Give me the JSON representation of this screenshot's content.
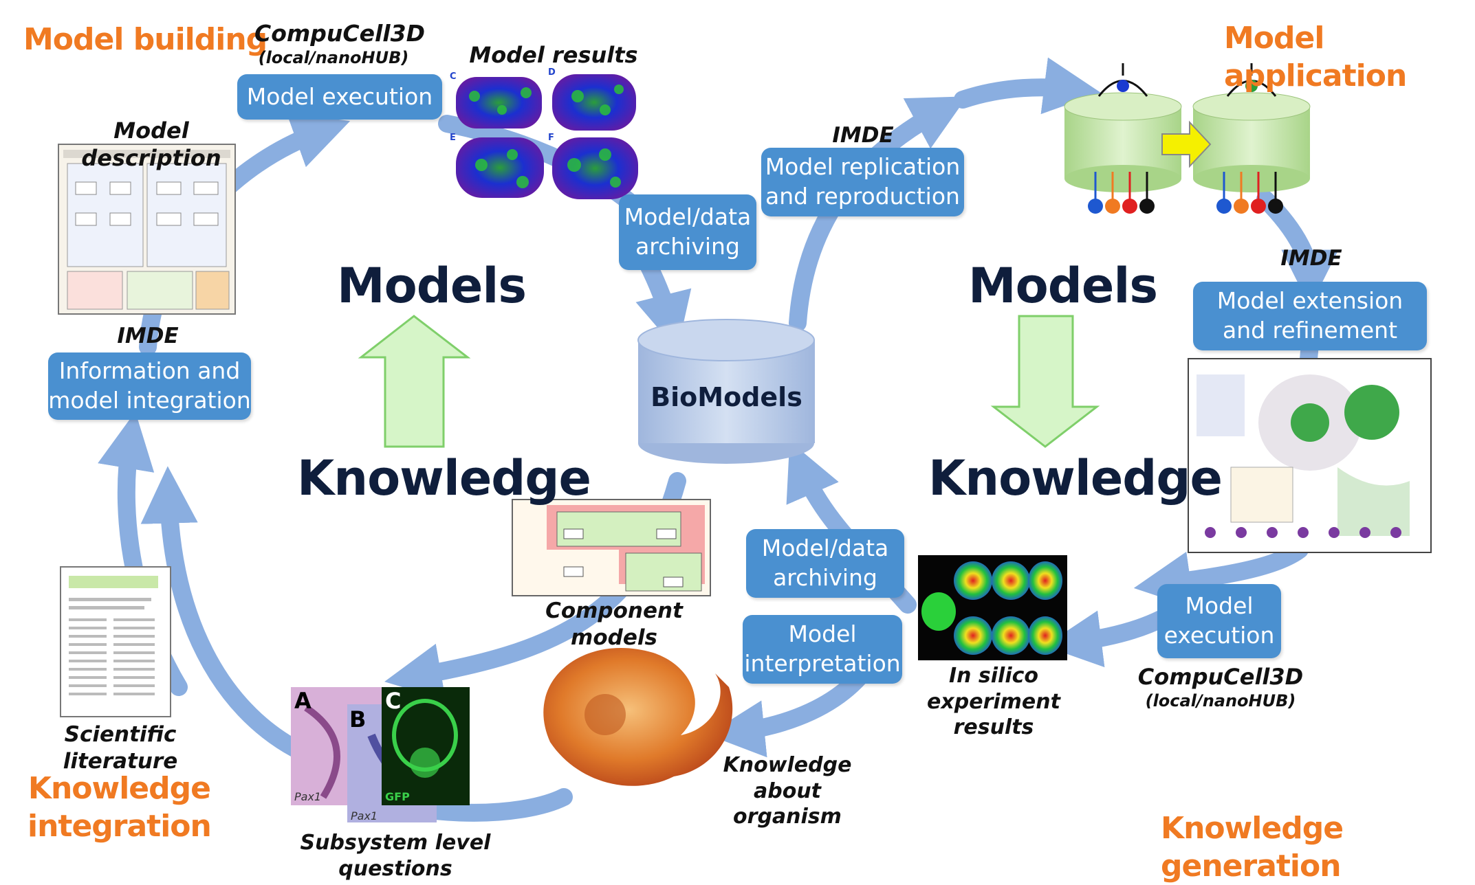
{
  "corners": {
    "model_building": "Model building",
    "model_application": "Model application",
    "knowledge_integration_line1": "Knowledge",
    "knowledge_integration_line2": "integration",
    "knowledge_generation": "Knowledge generation"
  },
  "left_cycle": {
    "compucell_title": "CompuCell3D",
    "compucell_sub": "(local/nanoHUB)",
    "model_execution": "Model execution",
    "model_results": "Model results",
    "result_panel_letters": [
      "C",
      "D",
      "E",
      "F"
    ],
    "model_description": "Model description",
    "imde": "IMDE",
    "info_integration_line1": "Information and",
    "info_integration_line2": "model integration",
    "archiving_line1": "Model/data",
    "archiving_line2": "archiving",
    "models": "Models",
    "knowledge": "Knowledge",
    "component_models": "Component models",
    "scientific_literature": "Scientific literature",
    "subsystem_questions": "Subsystem level questions",
    "panel_letters": [
      "A",
      "B",
      "C"
    ],
    "panel_captions": [
      "Pax1",
      "Pax1",
      "GFP"
    ]
  },
  "center": {
    "biomodels": "BioModels"
  },
  "right_cycle": {
    "imde_top": "IMDE",
    "replication_line1": "Model replication",
    "replication_line2": "and reproduction",
    "imde_right": "IMDE",
    "extension_line1": "Model extension",
    "extension_line2": "and refinement",
    "models": "Models",
    "knowledge": "Knowledge",
    "archiving_line1": "Model/data",
    "archiving_line2": "archiving",
    "interpretation_line1": "Model",
    "interpretation_line2": "interpretation",
    "insilico_line1": "In silico",
    "insilico_line2": "experiment results",
    "execution_line1": "Model",
    "execution_line2": "execution",
    "compucell_title": "CompuCell3D",
    "compucell_sub": "(local/nanoHUB)",
    "organism_line1": "Knowledge",
    "organism_line2": "about organism"
  },
  "colors": {
    "box_fill": "#4a90d0",
    "cycle_arrow": "#8aaee0",
    "corner_text": "#f07a22",
    "big_arrow_fill": "#d6f5c8",
    "big_arrow_stroke": "#7fcf6a",
    "cylinder": "#b7c9e6",
    "drum": "#c8e6a6"
  },
  "icons": [
    "eye-icon",
    "right-arrow-icon",
    "up-arrow-icon",
    "down-arrow-icon"
  ]
}
